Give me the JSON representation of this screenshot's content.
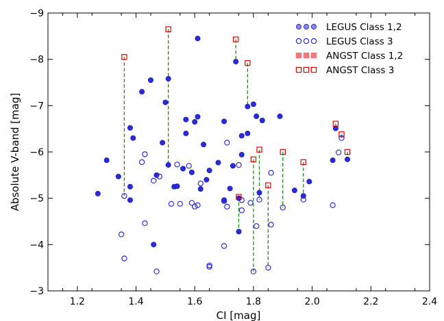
{
  "chart_data": {
    "type": "scatter",
    "xlabel": "CI [mag]",
    "ylabel": "Absolute V-band [mag]",
    "xlim": [
      1.1,
      2.4
    ],
    "ylim": [
      -3,
      -9
    ],
    "y_inverted": true,
    "xticks": [
      "1.2",
      "1.4",
      "1.6",
      "1.8",
      "2.0",
      "2.2",
      "2.4"
    ],
    "yticks": [
      "−9",
      "−8",
      "−7",
      "−6",
      "−5",
      "−4",
      "−3"
    ],
    "legend_position": "top-right",
    "series": [
      {
        "name": "LEGUS Class 1,2",
        "color": "#2b2bd9",
        "marker": "filled-circle",
        "points": [
          [
            1.27,
            -5.1
          ],
          [
            1.3,
            -5.82
          ],
          [
            1.34,
            -5.47
          ],
          [
            1.38,
            -4.96
          ],
          [
            1.38,
            -5.25
          ],
          [
            1.38,
            -6.52
          ],
          [
            1.39,
            -6.3
          ],
          [
            1.42,
            -7.3
          ],
          [
            1.45,
            -7.55
          ],
          [
            1.46,
            -4.0
          ],
          [
            1.47,
            -5.5
          ],
          [
            1.49,
            -6.2
          ],
          [
            1.5,
            -7.07
          ],
          [
            1.51,
            -7.58
          ],
          [
            1.51,
            -5.72
          ],
          [
            1.53,
            -5.25
          ],
          [
            1.54,
            -5.26
          ],
          [
            1.56,
            -5.64
          ],
          [
            1.57,
            -6.4
          ],
          [
            1.57,
            -6.7
          ],
          [
            1.59,
            -5.56
          ],
          [
            1.6,
            -6.65
          ],
          [
            1.61,
            -6.76
          ],
          [
            1.61,
            -8.45
          ],
          [
            1.62,
            -5.2
          ],
          [
            1.63,
            -6.16
          ],
          [
            1.64,
            -5.4
          ],
          [
            1.65,
            -5.6
          ],
          [
            1.68,
            -5.77
          ],
          [
            1.7,
            -6.66
          ],
          [
            1.7,
            -4.96
          ],
          [
            1.72,
            -5.21
          ],
          [
            1.73,
            -5.7
          ],
          [
            1.74,
            -7.95
          ],
          [
            1.75,
            -4.28
          ],
          [
            1.75,
            -5.0
          ],
          [
            1.76,
            -5.94
          ],
          [
            1.76,
            -6.35
          ],
          [
            1.78,
            -6.98
          ],
          [
            1.78,
            -6.4
          ],
          [
            1.8,
            -7.03
          ],
          [
            1.81,
            -6.77
          ],
          [
            1.82,
            -5.12
          ],
          [
            1.83,
            -6.68
          ],
          [
            1.89,
            -6.77
          ],
          [
            1.94,
            -5.17
          ],
          [
            1.97,
            -5.05
          ],
          [
            1.99,
            -5.36
          ],
          [
            2.07,
            -5.82
          ],
          [
            2.08,
            -6.51
          ],
          [
            2.12,
            -5.84
          ]
        ]
      },
      {
        "name": "LEGUS Class 3",
        "color": "#2b2bd9",
        "marker": "open-circle",
        "points": [
          [
            1.35,
            -4.22
          ],
          [
            1.36,
            -3.7
          ],
          [
            1.36,
            -5.05
          ],
          [
            1.42,
            -5.78
          ],
          [
            1.43,
            -4.46
          ],
          [
            1.43,
            -5.95
          ],
          [
            1.46,
            -5.38
          ],
          [
            1.47,
            -3.42
          ],
          [
            1.48,
            -5.47
          ],
          [
            1.52,
            -4.88
          ],
          [
            1.54,
            -5.73
          ],
          [
            1.55,
            -4.88
          ],
          [
            1.58,
            -5.7
          ],
          [
            1.59,
            -4.9
          ],
          [
            1.6,
            -4.82
          ],
          [
            1.61,
            -4.85
          ],
          [
            1.62,
            -5.32
          ],
          [
            1.65,
            -3.52
          ],
          [
            1.65,
            -3.55
          ],
          [
            1.7,
            -3.97
          ],
          [
            1.7,
            -4.94
          ],
          [
            1.71,
            -4.82
          ],
          [
            1.71,
            -6.2
          ],
          [
            1.75,
            -5.72
          ],
          [
            1.76,
            -4.74
          ],
          [
            1.76,
            -4.96
          ],
          [
            1.79,
            -4.9
          ],
          [
            1.8,
            -3.42
          ],
          [
            1.81,
            -4.4
          ],
          [
            1.82,
            -4.97
          ],
          [
            1.85,
            -3.5
          ],
          [
            1.86,
            -4.43
          ],
          [
            1.86,
            -5.55
          ],
          [
            1.9,
            -4.8
          ],
          [
            1.97,
            -4.97
          ],
          [
            2.07,
            -4.85
          ],
          [
            2.09,
            -5.99
          ],
          [
            2.1,
            -6.3
          ]
        ]
      },
      {
        "name": "ANGST Class 1,2",
        "color": "#f07a7a",
        "marker": "filled-square",
        "points": []
      },
      {
        "name": "ANGST Class 3",
        "color": "#e00000",
        "marker": "open-square",
        "points": [
          [
            1.36,
            -8.05
          ],
          [
            1.51,
            -8.65
          ],
          [
            1.74,
            -8.43
          ],
          [
            1.78,
            -7.92
          ],
          [
            1.75,
            -5.03
          ],
          [
            1.8,
            -5.84
          ],
          [
            1.82,
            -6.05
          ],
          [
            1.85,
            -5.28
          ],
          [
            1.9,
            -6.0
          ],
          [
            1.97,
            -5.78
          ],
          [
            2.08,
            -6.61
          ],
          [
            2.1,
            -6.38
          ],
          [
            2.12,
            -6.0
          ]
        ]
      }
    ],
    "connectors": {
      "color": "#1a8a1a",
      "style": "dashed",
      "links": [
        [
          1.36,
          -8.05,
          -5.05
        ],
        [
          1.51,
          -8.65,
          -5.72
        ],
        [
          1.74,
          -8.43,
          -7.95
        ],
        [
          1.78,
          -7.92,
          -6.98
        ],
        [
          1.75,
          -5.03,
          -4.28
        ],
        [
          1.8,
          -5.84,
          -3.42
        ],
        [
          1.82,
          -6.05,
          -4.97
        ],
        [
          1.85,
          -5.28,
          -3.5
        ],
        [
          1.9,
          -6.0,
          -4.8
        ],
        [
          1.97,
          -5.78,
          -5.05
        ],
        [
          2.08,
          -6.61,
          -6.51
        ],
        [
          2.1,
          -6.38,
          -6.3
        ],
        [
          2.12,
          -6.0,
          -5.84
        ]
      ]
    }
  }
}
